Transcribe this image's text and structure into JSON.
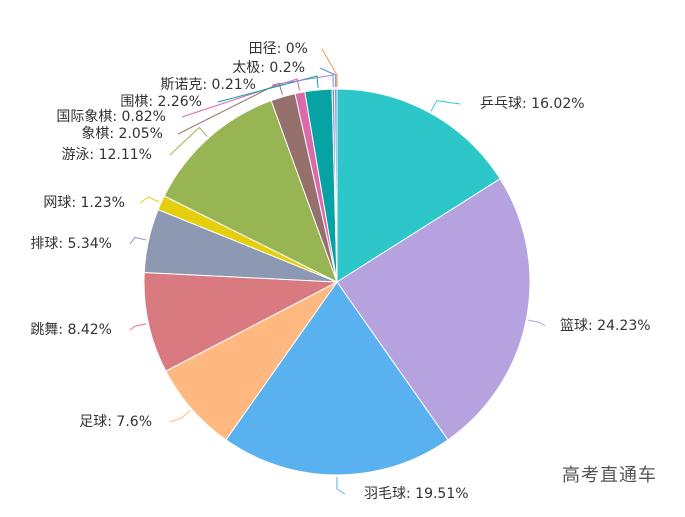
{
  "chart_data": {
    "type": "pie",
    "slices": [
      {
        "label": "乒乓球",
        "value": 16.02,
        "display": "乒乓球: 16.02%",
        "color": "#2ec7c9"
      },
      {
        "label": "篮球",
        "value": 24.23,
        "display": "篮球: 24.23%",
        "color": "#b6a2de"
      },
      {
        "label": "羽毛球",
        "value": 19.51,
        "display": "羽毛球: 19.51%",
        "color": "#5ab1ef"
      },
      {
        "label": "足球",
        "value": 7.6,
        "display": "足球: 7.6%",
        "color": "#ffb980"
      },
      {
        "label": "跳舞",
        "value": 8.42,
        "display": "跳舞: 8.42%",
        "color": "#d87a80"
      },
      {
        "label": "排球",
        "value": 5.34,
        "display": "排球: 5.34%",
        "color": "#8d98b3"
      },
      {
        "label": "网球",
        "value": 1.23,
        "display": "网球: 1.23%",
        "color": "#e5cf0d"
      },
      {
        "label": "游泳",
        "value": 12.11,
        "display": "游泳: 12.11%",
        "color": "#97b552"
      },
      {
        "label": "象棋",
        "value": 2.05,
        "display": "象棋: 2.05%",
        "color": "#95706d"
      },
      {
        "label": "国际象棋",
        "value": 0.82,
        "display": "国际象棋: 0.82%",
        "color": "#dc69aa"
      },
      {
        "label": "围棋",
        "value": 2.26,
        "display": "围棋: 2.26%",
        "color": "#07a2a4"
      },
      {
        "label": "斯诺克",
        "value": 0.21,
        "display": "斯诺克: 0.21%",
        "color": "#9a7fd1"
      },
      {
        "label": "太极",
        "value": 0.2,
        "display": "太极: 0.2%",
        "color": "#588dd5"
      },
      {
        "label": "田径",
        "value": 0,
        "display": "田径: 0%",
        "color": "#f5994e"
      }
    ]
  },
  "watermark": "高考直通车"
}
